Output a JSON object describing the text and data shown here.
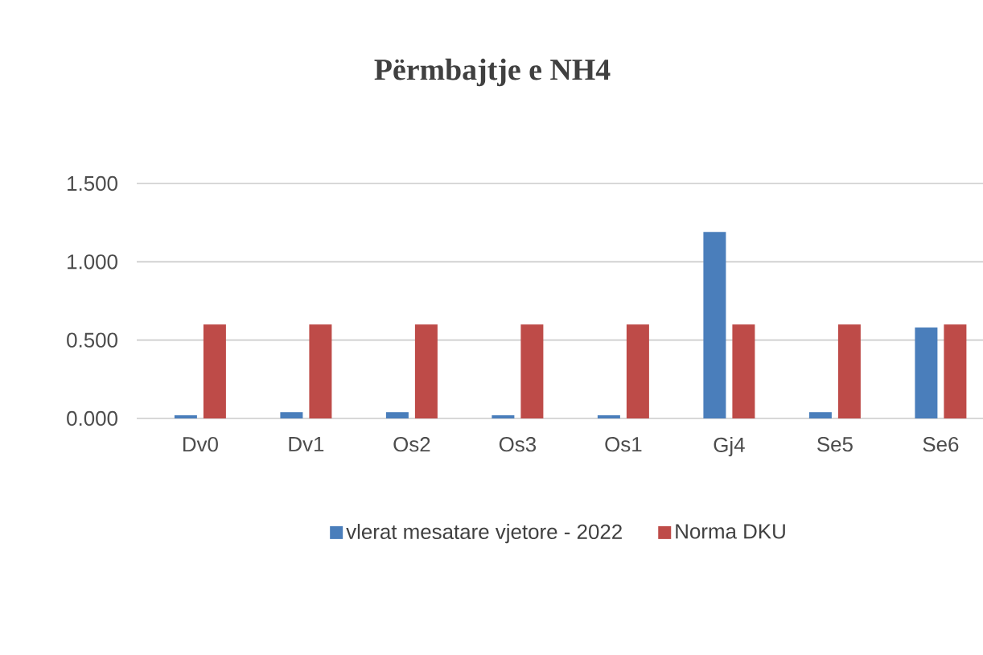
{
  "chart_data": {
    "type": "bar",
    "title": "Përmbajtje  e NH4",
    "categories": [
      "Dv0",
      "Dv1",
      "Os2",
      "Os3",
      "Os1",
      "Gj4",
      "Se5",
      "Se6"
    ],
    "series": [
      {
        "name": "vlerat mesatare vjetore - 2022",
        "color": "#4a7ebb",
        "values": [
          0.02,
          0.04,
          0.04,
          0.02,
          0.02,
          1.19,
          0.04,
          0.58
        ]
      },
      {
        "name": "Norma DKU",
        "color": "#be4b48",
        "values": [
          0.6,
          0.6,
          0.6,
          0.6,
          0.6,
          0.6,
          0.6,
          0.6
        ]
      }
    ],
    "ylim": [
      0,
      1.5
    ],
    "yticks": [
      {
        "value": 0,
        "label": "0.000"
      },
      {
        "value": 0.5,
        "label": "0.500"
      },
      {
        "value": 1,
        "label": "1.000"
      },
      {
        "value": 1.5,
        "label": "1.500"
      }
    ],
    "grid": "y",
    "legend": "bottom"
  }
}
